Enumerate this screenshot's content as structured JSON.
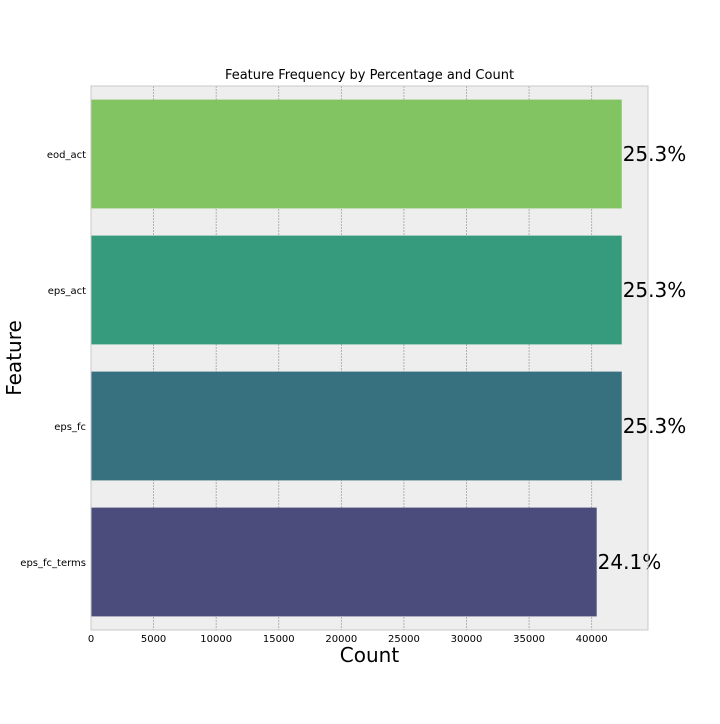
{
  "chart_data": {
    "type": "bar",
    "orientation": "horizontal",
    "title": "Feature Frequency by Percentage and Count",
    "xlabel": "Count",
    "ylabel": "Feature",
    "categories": [
      "eod_act",
      "eps_act",
      "eps_fc",
      "eps_fc_terms"
    ],
    "values": [
      42400,
      42400,
      42400,
      40400
    ],
    "data_labels": [
      "25.3%",
      "25.3%",
      "25.3%",
      "24.1%"
    ],
    "bar_colors": [
      "#82c461",
      "#369a7c",
      "#37707f",
      "#4b4b7c"
    ],
    "xlim": [
      0,
      44500
    ],
    "xticks": [
      0,
      5000,
      10000,
      15000,
      20000,
      25000,
      30000,
      35000,
      40000
    ],
    "grid": true,
    "background_color": "#eeeeee",
    "grid_color": "#a3a3a3"
  }
}
